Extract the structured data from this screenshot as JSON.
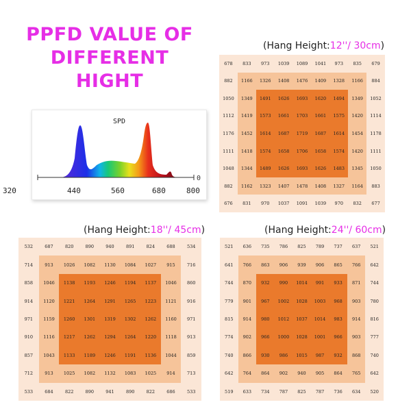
{
  "title": {
    "line1": "PPFD VALUE OF",
    "line2": "DIFFERENT HIGHT"
  },
  "spd": {
    "label": "SPD",
    "ticks": [
      "320",
      "440",
      "560",
      "680",
      "800"
    ],
    "zero": "0"
  },
  "colors": {
    "title": "#e62ee6",
    "outer": "#fbe6d6",
    "middle": "#f6c49a",
    "inner": "#ea7a2c"
  },
  "panels": [
    {
      "id": "p12",
      "caption_pre": "(Hang Height:",
      "caption_hl": "12''/ 30cm",
      "caption_post": ")",
      "rows": [
        [
          "678",
          "833",
          "973",
          "1039",
          "1089",
          "1041",
          "973",
          "835",
          "679"
        ],
        [
          "882",
          "1166",
          "1326",
          "1408",
          "1476",
          "1409",
          "1328",
          "1166",
          "884"
        ],
        [
          "1050",
          "1349",
          "1491",
          "1626",
          "1693",
          "1620",
          "1494",
          "1349",
          "1052"
        ],
        [
          "1112",
          "1419",
          "1573",
          "1661",
          "1703",
          "1661",
          "1575",
          "1420",
          "1114"
        ],
        [
          "1176",
          "1452",
          "1614",
          "1687",
          "1719",
          "1687",
          "1614",
          "1454",
          "1178"
        ],
        [
          "1111",
          "1418",
          "1574",
          "1658",
          "1706",
          "1658",
          "1574",
          "1420",
          "1111"
        ],
        [
          "1048",
          "1344",
          "1489",
          "1626",
          "1693",
          "1626",
          "1483",
          "1345",
          "1050"
        ],
        [
          "882",
          "1162",
          "1323",
          "1407",
          "1478",
          "1408",
          "1327",
          "1164",
          "883"
        ],
        [
          "676",
          "831",
          "970",
          "1037",
          "1091",
          "1039",
          "970",
          "832",
          "677"
        ]
      ]
    },
    {
      "id": "p18",
      "caption_pre": "(Hang Height:",
      "caption_hl": "18''/ 45cm",
      "caption_post": ")",
      "rows": [
        [
          "532",
          "687",
          "820",
          "890",
          "940",
          "891",
          "824",
          "688",
          "534"
        ],
        [
          "714",
          "913",
          "1026",
          "1082",
          "1130",
          "1084",
          "1027",
          "915",
          "716"
        ],
        [
          "858",
          "1046",
          "1138",
          "1193",
          "1246",
          "1194",
          "1137",
          "1046",
          "860"
        ],
        [
          "914",
          "1120",
          "1221",
          "1264",
          "1291",
          "1265",
          "1223",
          "1121",
          "916"
        ],
        [
          "971",
          "1159",
          "1260",
          "1301",
          "1319",
          "1302",
          "1262",
          "1160",
          "971"
        ],
        [
          "910",
          "1116",
          "1217",
          "1262",
          "1294",
          "1264",
          "1220",
          "1118",
          "913"
        ],
        [
          "857",
          "1043",
          "1133",
          "1189",
          "1246",
          "1191",
          "1136",
          "1044",
          "859"
        ],
        [
          "712",
          "913",
          "1025",
          "1082",
          "1132",
          "1083",
          "1025",
          "914",
          "713"
        ],
        [
          "533",
          "684",
          "822",
          "890",
          "941",
          "890",
          "822",
          "686",
          "533"
        ]
      ]
    },
    {
      "id": "p24",
      "caption_pre": "(Hang Height:",
      "caption_hl": "24''/ 60cm",
      "caption_post": ")",
      "rows": [
        [
          "521",
          "636",
          "735",
          "786",
          "825",
          "789",
          "737",
          "637",
          "521"
        ],
        [
          "641",
          "766",
          "863",
          "906",
          "939",
          "906",
          "865",
          "766",
          "642"
        ],
        [
          "744",
          "870",
          "932",
          "990",
          "1014",
          "991",
          "933",
          "871",
          "744"
        ],
        [
          "779",
          "901",
          "967",
          "1002",
          "1028",
          "1003",
          "968",
          "903",
          "780"
        ],
        [
          "815",
          "914",
          "980",
          "1012",
          "1037",
          "1014",
          "983",
          "914",
          "816"
        ],
        [
          "774",
          "902",
          "966",
          "1000",
          "1028",
          "1001",
          "966",
          "903",
          "777"
        ],
        [
          "740",
          "866",
          "930",
          "986",
          "1015",
          "987",
          "932",
          "868",
          "740"
        ],
        [
          "642",
          "764",
          "864",
          "902",
          "940",
          "905",
          "864",
          "765",
          "642"
        ],
        [
          "519",
          "633",
          "734",
          "787",
          "825",
          "787",
          "736",
          "634",
          "520"
        ]
      ]
    }
  ]
}
